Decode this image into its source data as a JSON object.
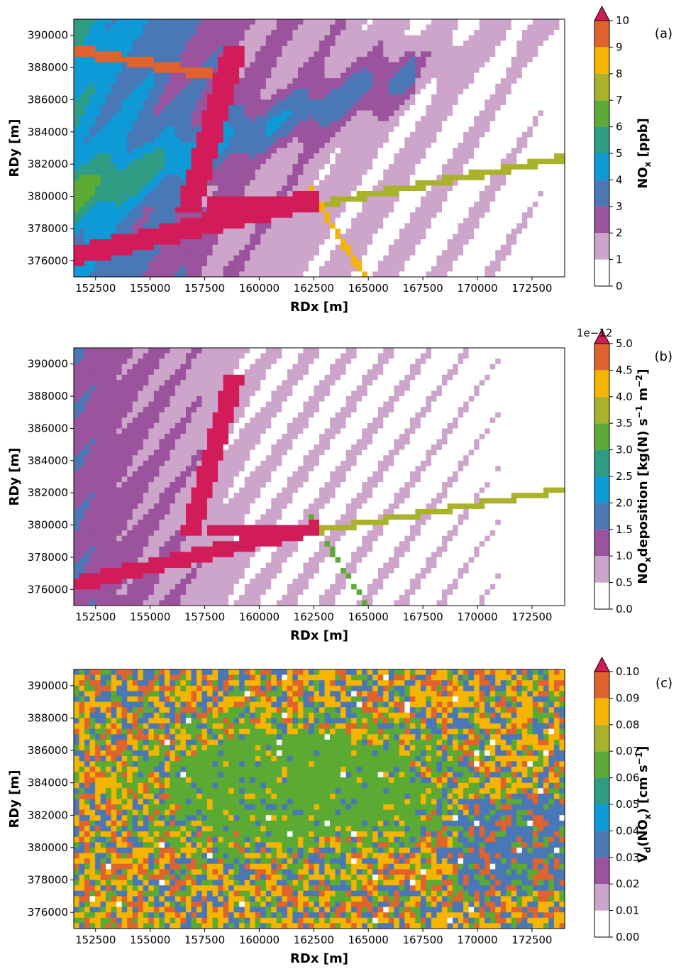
{
  "chart_data": [
    {
      "type": "heatmap",
      "panel_label": "(a)",
      "xlabel": "RDx [m]",
      "ylabel": "RDy [m]",
      "colorbar_label": "NOx [ppb]",
      "x_ticks": [
        "152500",
        "155000",
        "157500",
        "160000",
        "162500",
        "165000",
        "167500",
        "170000",
        "172500"
      ],
      "y_ticks": [
        "376000",
        "378000",
        "380000",
        "382000",
        "384000",
        "386000",
        "388000",
        "390000"
      ],
      "xlim": [
        151500,
        174000
      ],
      "ylim": [
        375000,
        391000
      ],
      "colorbar_levels": [
        "0",
        "1",
        "2",
        "3",
        "4",
        "5",
        "6",
        "7",
        "8",
        "9",
        "10"
      ],
      "colorbar_extend": "max",
      "colorbar_offset_text": "",
      "field_description_levels": [
        0,
        1,
        2,
        3,
        4,
        5,
        6,
        7,
        8,
        9,
        10
      ]
    },
    {
      "type": "heatmap",
      "panel_label": "(b)",
      "xlabel": "RDx [m]",
      "ylabel": "RDy [m]",
      "colorbar_label": "NOxdeposition [kg(N) s−1 m−2]",
      "x_ticks": [
        "152500",
        "155000",
        "157500",
        "160000",
        "162500",
        "165000",
        "167500",
        "170000",
        "172500"
      ],
      "y_ticks": [
        "376000",
        "378000",
        "380000",
        "382000",
        "384000",
        "386000",
        "388000",
        "390000"
      ],
      "xlim": [
        151500,
        174000
      ],
      "ylim": [
        375000,
        391000
      ],
      "colorbar_levels": [
        "0.0",
        "0.5",
        "1.0",
        "1.5",
        "2.0",
        "2.5",
        "3.0",
        "3.5",
        "4.0",
        "4.5",
        "5.0"
      ],
      "colorbar_extend": "max",
      "colorbar_offset_text": "1e−12"
    },
    {
      "type": "heatmap",
      "panel_label": "(c)",
      "xlabel": "RDx [m]",
      "ylabel": "RDy [m]",
      "colorbar_label": "Vd(NOx) [cm s−1]",
      "x_ticks": [
        "152500",
        "155000",
        "157500",
        "160000",
        "162500",
        "165000",
        "167500",
        "170000",
        "172500"
      ],
      "y_ticks": [
        "376000",
        "378000",
        "380000",
        "382000",
        "384000",
        "386000",
        "388000",
        "390000"
      ],
      "xlim": [
        151500,
        174000
      ],
      "ylim": [
        375000,
        391000
      ],
      "colorbar_levels": [
        "0.00",
        "0.01",
        "0.02",
        "0.03",
        "0.04",
        "0.05",
        "0.06",
        "0.07",
        "0.08",
        "0.09",
        "0.10"
      ],
      "colorbar_extend": "max",
      "colorbar_offset_text": ""
    }
  ],
  "colormap": [
    "#ffffff",
    "#cda5cb",
    "#9a539c",
    "#4a78b6",
    "#0e9ad7",
    "#2e9d84",
    "#5aaa33",
    "#a9b22a",
    "#f4b400",
    "#e0632e",
    "#d21c5a"
  ],
  "label_parts": {
    "a": {
      "main": "NO",
      "sub": "x",
      "rest": " [ppb]"
    },
    "b": {
      "main": "NO",
      "sub": "x",
      "mid": "deposition [kg(N) s",
      "sup1": "−1",
      "mid2": " m",
      "sup2": "−2",
      "end": "]"
    },
    "c": {
      "main": "V",
      "sub": "d",
      "mid": "(NO",
      "sub2": "x",
      "mid2": ") [cm s",
      "sup": "−1",
      "end": "]"
    }
  }
}
